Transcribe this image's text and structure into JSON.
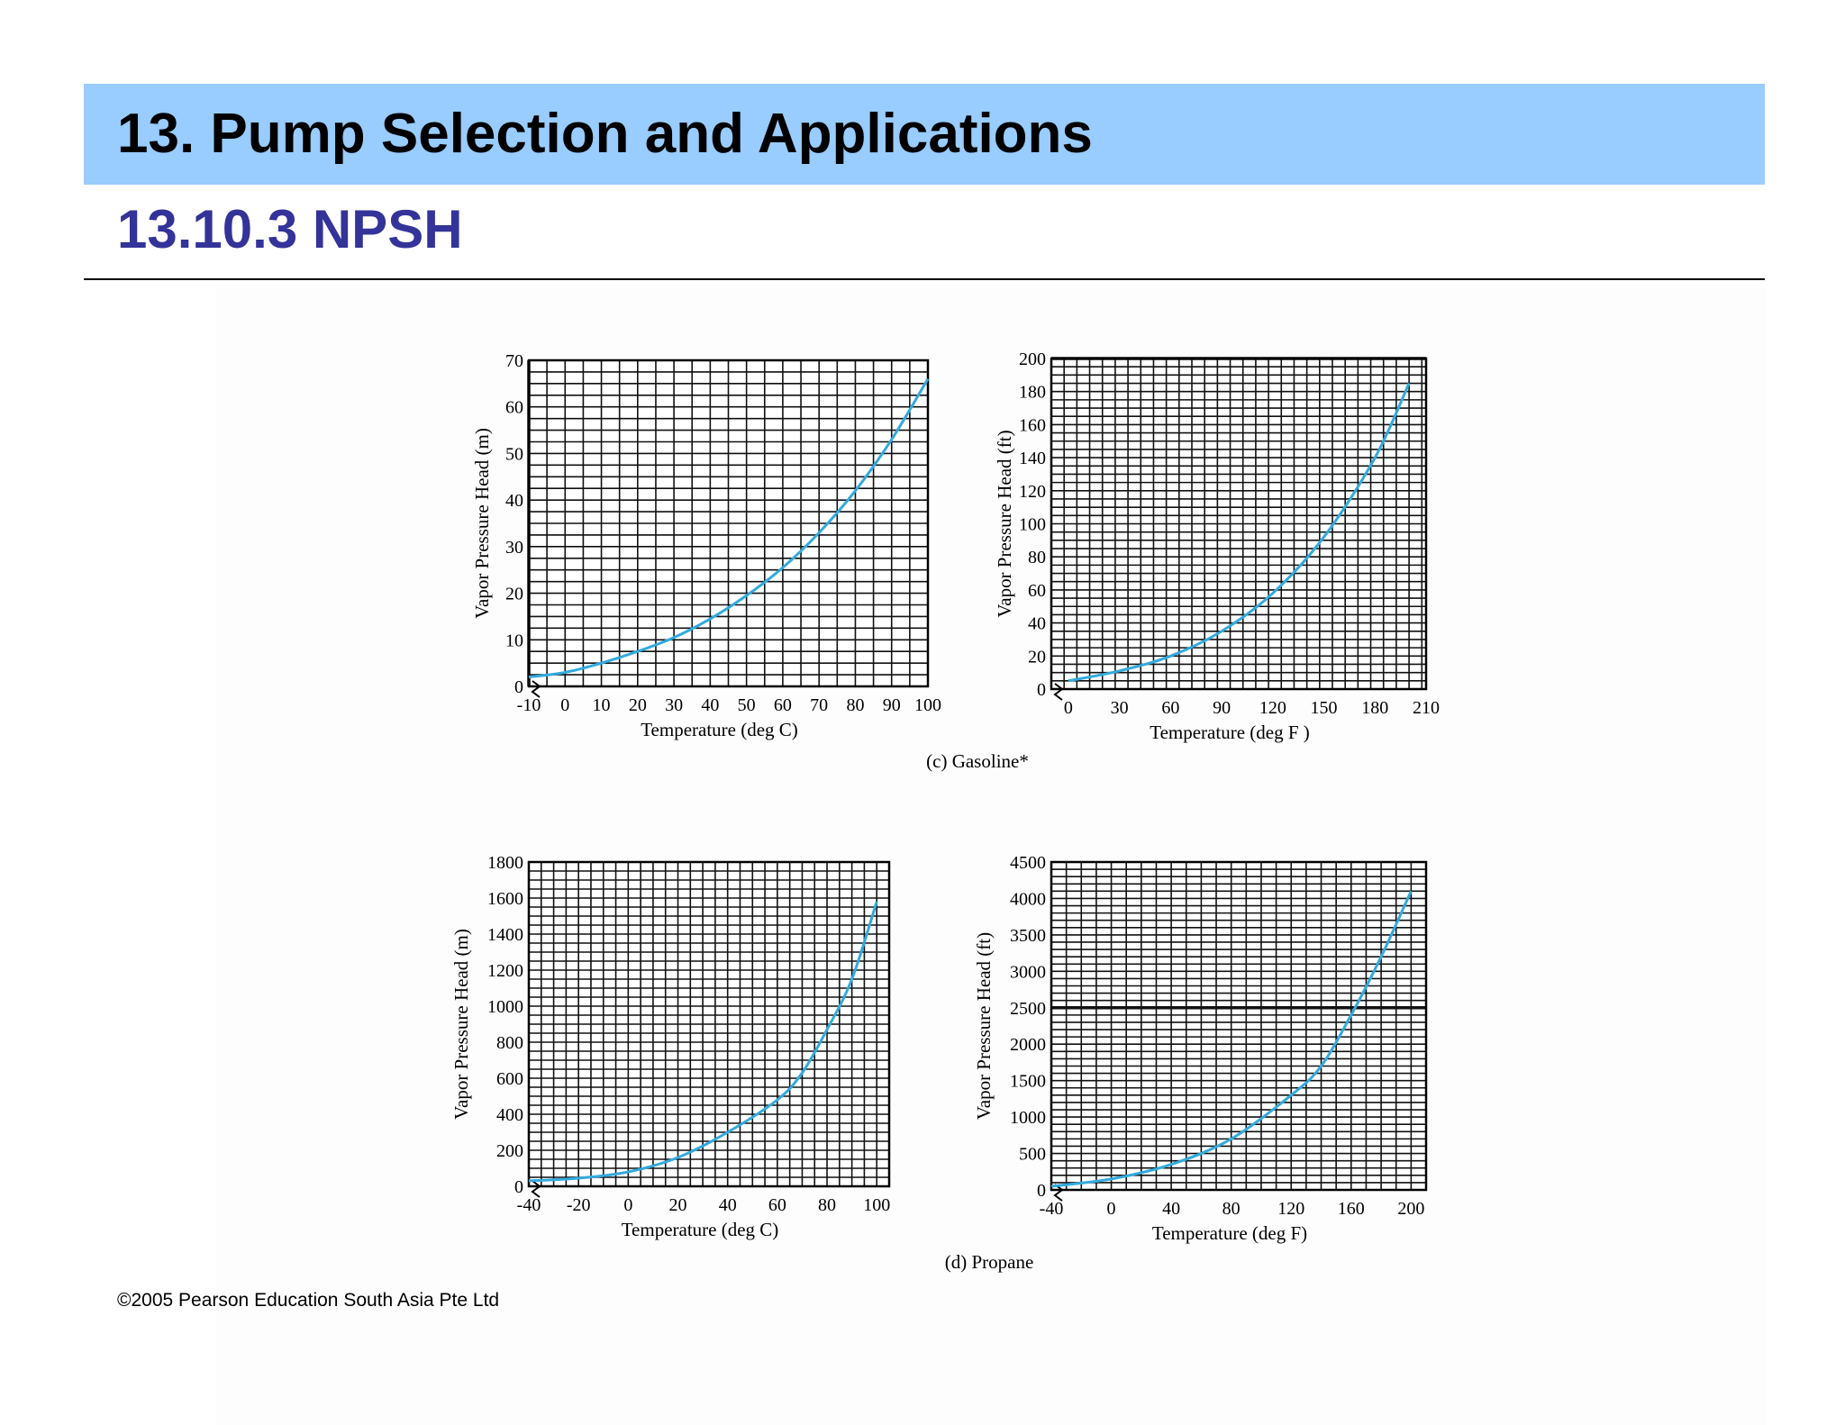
{
  "header": {
    "title": "13. Pump Selection and Applications",
    "subtitle": "13.10.3 NPSH"
  },
  "figure": {
    "caption_c": "(c) Gasoline*",
    "caption_d": "(d) Propane"
  },
  "footer": {
    "copyright": "©2005 Pearson Education South Asia Pte Ltd"
  },
  "colors": {
    "header_band": "#99ccff",
    "subtitle": "#333399",
    "curve": "#33aadd"
  },
  "chart_data": [
    {
      "id": "gasoline-si",
      "type": "line",
      "xlabel": "Temperature (deg C)",
      "ylabel": "Vapor Pressure Head (m)",
      "xlim": [
        -10,
        100
      ],
      "ylim": [
        0,
        70
      ],
      "xticks": [
        -10,
        0,
        10,
        20,
        30,
        40,
        50,
        60,
        70,
        80,
        90,
        100
      ],
      "yticks": [
        0,
        10,
        20,
        30,
        40,
        50,
        60,
        70
      ],
      "grid": true,
      "x": [
        -10,
        0,
        10,
        20,
        30,
        40,
        50,
        60,
        70,
        80,
        90,
        100
      ],
      "y": [
        2,
        3,
        5,
        7.5,
        10.5,
        14.5,
        19.5,
        25.5,
        33,
        42,
        53,
        66
      ]
    },
    {
      "id": "gasoline-bg",
      "type": "line",
      "xlabel": "Temperature (deg F )",
      "ylabel": "Vapor Pressure Head (ft)",
      "xlim": [
        -10,
        210
      ],
      "ylim": [
        0,
        200
      ],
      "xticks": [
        0,
        30,
        60,
        90,
        120,
        150,
        180,
        210
      ],
      "yticks": [
        0,
        20,
        40,
        60,
        80,
        100,
        120,
        140,
        160,
        180,
        200
      ],
      "grid": true,
      "x": [
        0,
        30,
        60,
        90,
        120,
        150,
        180,
        200
      ],
      "y": [
        5,
        11,
        20,
        35,
        58,
        92,
        140,
        185
      ]
    },
    {
      "id": "propane-si",
      "type": "line",
      "xlabel": "Temperature (deg C)",
      "ylabel": "Vapor Pressure Head (m)",
      "xlim": [
        -40,
        105
      ],
      "ylim": [
        0,
        1800
      ],
      "xticks": [
        -40,
        -20,
        0,
        20,
        40,
        60,
        80,
        100
      ],
      "yticks": [
        0,
        200,
        400,
        600,
        800,
        1000,
        1200,
        1400,
        1600,
        1800
      ],
      "grid": true,
      "x": [
        -40,
        -20,
        0,
        20,
        40,
        60,
        70,
        80,
        90,
        100
      ],
      "y": [
        30,
        45,
        80,
        160,
        300,
        480,
        630,
        870,
        1150,
        1580
      ]
    },
    {
      "id": "propane-bg",
      "type": "line",
      "xlabel": "Temperature (deg F)",
      "ylabel": "Vapor Pressure Head (ft)",
      "xlim": [
        -40,
        210
      ],
      "ylim": [
        0,
        4500
      ],
      "xticks": [
        -40,
        0,
        40,
        80,
        120,
        160,
        200
      ],
      "yticks": [
        0,
        500,
        1000,
        1500,
        2000,
        2500,
        3000,
        3500,
        4000,
        4500
      ],
      "grid": true,
      "x": [
        -40,
        0,
        40,
        80,
        120,
        140,
        160,
        180,
        200
      ],
      "y": [
        50,
        150,
        350,
        700,
        1300,
        1700,
        2400,
        3200,
        4100
      ]
    }
  ]
}
